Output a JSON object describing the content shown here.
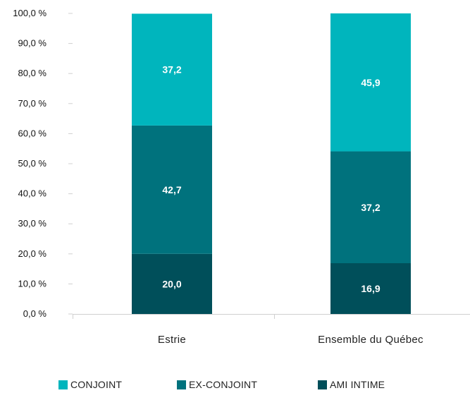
{
  "chart_data": {
    "type": "bar",
    "stacked": true,
    "categories": [
      "Estrie",
      "Ensemble du Québec"
    ],
    "series": [
      {
        "name": "AMI INTIME",
        "values": [
          20.0,
          16.9
        ],
        "labels": [
          "20,0",
          "16,9"
        ],
        "color": "#004f5a"
      },
      {
        "name": "EX-CONJOINT",
        "values": [
          42.7,
          37.2
        ],
        "labels": [
          "42,7",
          "37,2"
        ],
        "color": "#00727d"
      },
      {
        "name": "CONJOINT",
        "values": [
          37.2,
          45.9
        ],
        "labels": [
          "37,2",
          "45,9"
        ],
        "color": "#00b5bd"
      }
    ],
    "ylim": [
      0,
      100
    ],
    "yticks": [
      0,
      10,
      20,
      30,
      40,
      50,
      60,
      70,
      80,
      90,
      100
    ],
    "ytick_labels": [
      "0,0 %",
      "10,0 %",
      "20,0 %",
      "30,0 %",
      "40,0 %",
      "50,0 %",
      "60,0 %",
      "70,0 %",
      "80,0 %",
      "90,0 %",
      "100,0 %"
    ],
    "grid": false,
    "legend": {
      "placement": "bottom",
      "items": [
        {
          "label": "CONJOINT",
          "color": "#00b5bd"
        },
        {
          "label": "EX-CONJOINT",
          "color": "#00727d"
        },
        {
          "label": "AMI INTIME",
          "color": "#004f5a"
        }
      ]
    }
  }
}
